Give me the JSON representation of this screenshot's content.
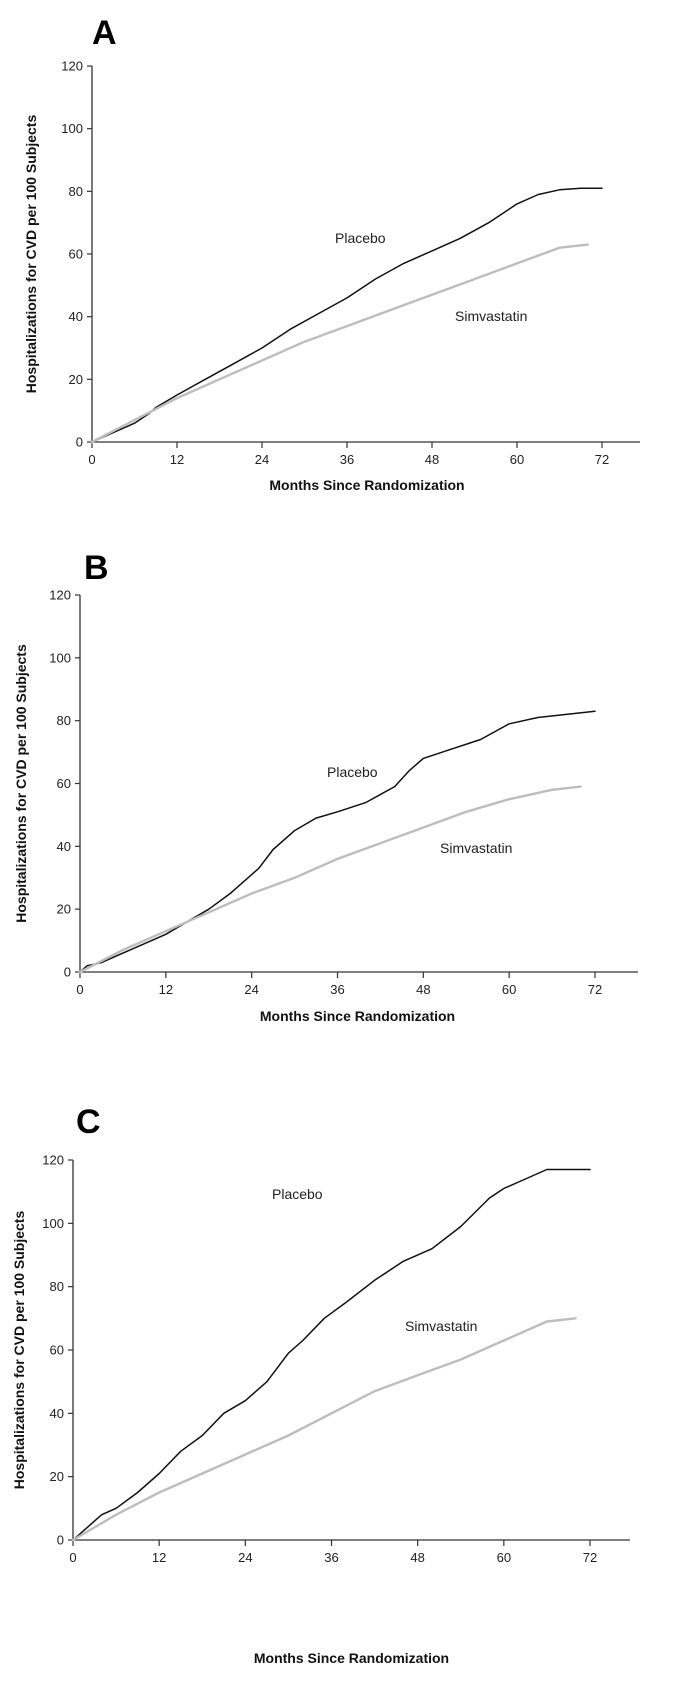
{
  "chart_data": [
    {
      "type": "line",
      "panel": "A",
      "xlabel": "Months Since Randomization",
      "ylabel": "Hospitalizations for CVD per 100 Subjects",
      "xlim": [
        0,
        72
      ],
      "ylim": [
        0,
        120
      ],
      "xticks": [
        "0",
        "12",
        "24",
        "36",
        "48",
        "60",
        "72"
      ],
      "yticks": [
        "0",
        "20",
        "40",
        "60",
        "80",
        "100",
        "120"
      ],
      "series": [
        {
          "name": "Placebo",
          "color": "#111111",
          "x": [
            0,
            3,
            6,
            8,
            9,
            12,
            16,
            20,
            24,
            28,
            32,
            36,
            40,
            44,
            48,
            52,
            56,
            60,
            63,
            66,
            69,
            72
          ],
          "y": [
            0,
            3,
            6,
            9,
            11,
            15,
            20,
            25,
            30,
            36,
            41,
            46,
            52,
            57,
            61,
            65,
            70,
            76,
            79,
            80.5,
            81,
            81
          ]
        },
        {
          "name": "Simvastatin",
          "color": "#bdbdbd",
          "x": [
            0,
            6,
            12,
            18,
            24,
            30,
            36,
            42,
            48,
            54,
            60,
            66,
            70
          ],
          "y": [
            0,
            7,
            14,
            20,
            26,
            32,
            37,
            42,
            47,
            52,
            57,
            62,
            63
          ]
        }
      ]
    },
    {
      "type": "line",
      "panel": "B",
      "xlabel": "Months Since Randomization",
      "ylabel": "Hospitalizations for CVD per 100 Subjects",
      "xlim": [
        0,
        72
      ],
      "ylim": [
        0,
        120
      ],
      "xticks": [
        "0",
        "12",
        "24",
        "36",
        "48",
        "60",
        "72"
      ],
      "yticks": [
        "0",
        "20",
        "40",
        "60",
        "80",
        "100",
        "120"
      ],
      "series": [
        {
          "name": "Placebo",
          "color": "#111111",
          "x": [
            0,
            1,
            3,
            6,
            9,
            12,
            15,
            18,
            21,
            24,
            25,
            27,
            30,
            33,
            36,
            40,
            44,
            46,
            48,
            52,
            56,
            60,
            64,
            68,
            72
          ],
          "y": [
            0,
            2,
            3,
            6,
            9,
            12,
            16,
            20,
            25,
            31,
            33,
            39,
            45,
            49,
            51,
            54,
            59,
            64,
            68,
            71,
            74,
            79,
            81,
            82,
            83
          ]
        },
        {
          "name": "Simvastatin",
          "color": "#bdbdbd",
          "x": [
            0,
            6,
            12,
            18,
            24,
            30,
            36,
            42,
            48,
            54,
            60,
            66,
            70
          ],
          "y": [
            0,
            7,
            13,
            19,
            25,
            30,
            36,
            41,
            46,
            51,
            55,
            58,
            59
          ]
        }
      ]
    },
    {
      "type": "line",
      "panel": "C",
      "xlabel": "Months Since Randomization",
      "ylabel": "Hospitalizations for CVD per 100 Subjects",
      "xlim": [
        0,
        72
      ],
      "ylim": [
        0,
        120
      ],
      "xticks": [
        "0",
        "12",
        "24",
        "36",
        "48",
        "60",
        "72"
      ],
      "yticks": [
        "0",
        "20",
        "40",
        "60",
        "80",
        "100",
        "120"
      ],
      "series": [
        {
          "name": "Placebo",
          "color": "#111111",
          "x": [
            0,
            2,
            4,
            6,
            9,
            12,
            15,
            18,
            21,
            24,
            27,
            30,
            32,
            35,
            38,
            42,
            46,
            50,
            54,
            58,
            60,
            63,
            66,
            69,
            72
          ],
          "y": [
            0,
            4,
            8,
            10,
            15,
            21,
            28,
            33,
            40,
            44,
            50,
            59,
            63,
            70,
            75,
            82,
            88,
            92,
            99,
            108,
            111,
            114,
            117,
            117,
            117
          ]
        },
        {
          "name": "Simvastatin",
          "color": "#bdbdbd",
          "x": [
            0,
            6,
            12,
            18,
            24,
            30,
            36,
            42,
            48,
            54,
            60,
            66,
            70
          ],
          "y": [
            0,
            8,
            15,
            21,
            27,
            33,
            40,
            47,
            52,
            57,
            63,
            69,
            70
          ]
        }
      ]
    }
  ]
}
